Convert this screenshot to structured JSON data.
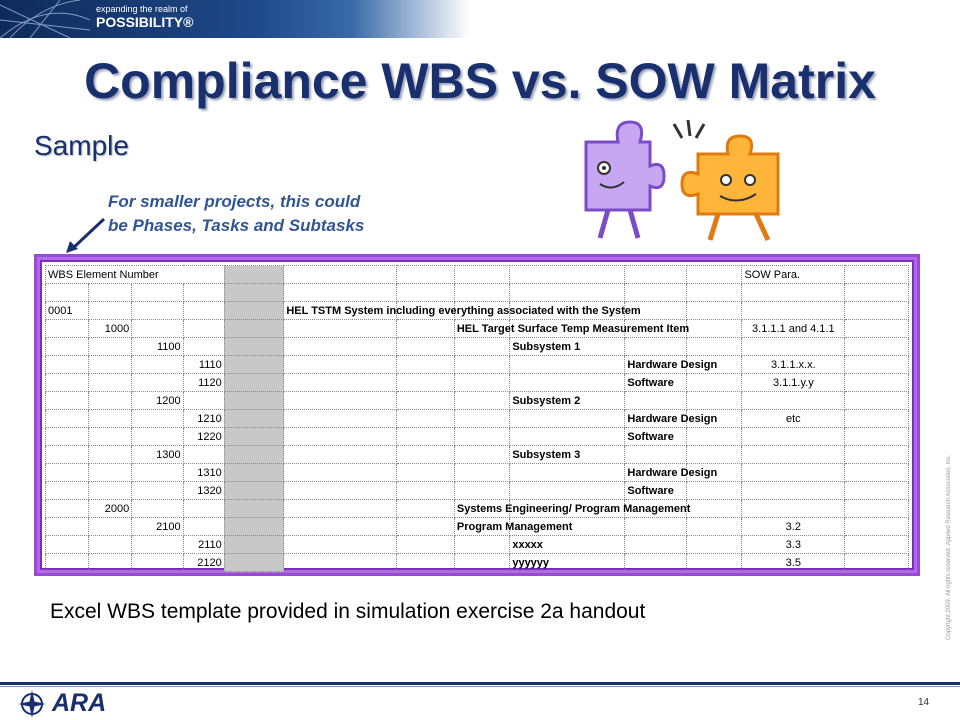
{
  "banner": {
    "tagline": "expanding the realm of",
    "brand": "POSSIBILITY®"
  },
  "title": "Compliance WBS vs. SOW Matrix",
  "subtitle": "Sample",
  "note": {
    "line1": "For smaller projects, this could",
    "line2": "be Phases, Tasks and Subtasks"
  },
  "sheet": {
    "header": {
      "wbs": "WBS Element Number",
      "sow": "SOW Para."
    },
    "rows": [
      {
        "l1": "0001",
        "l2": "",
        "l3": "",
        "l4": "",
        "desc1": "HEL TSTM System  including everything associated with the System",
        "desc2": "",
        "desc3": "",
        "desc4": "",
        "sow": ""
      },
      {
        "l1": "",
        "l2": "1000",
        "l3": "",
        "l4": "",
        "desc1": "",
        "desc2": "HEL Target Surface Temp Measurement Item",
        "desc3": "",
        "desc4": "",
        "sow": "3.1.1.1  and 4.1.1"
      },
      {
        "l1": "",
        "l2": "",
        "l3": "1100",
        "l4": "",
        "desc1": "",
        "desc2": "",
        "desc3": "Subsystem 1",
        "desc4": "",
        "sow": ""
      },
      {
        "l1": "",
        "l2": "",
        "l3": "",
        "l4": "1110",
        "desc1": "",
        "desc2": "",
        "desc3": "",
        "desc4": "Hardware Design",
        "sow": "3.1.1.x.x."
      },
      {
        "l1": "",
        "l2": "",
        "l3": "",
        "l4": "1120",
        "desc1": "",
        "desc2": "",
        "desc3": "",
        "desc4": "Software",
        "sow": "3.1.1.y.y"
      },
      {
        "l1": "",
        "l2": "",
        "l3": "1200",
        "l4": "",
        "desc1": "",
        "desc2": "",
        "desc3": "Subsystem 2",
        "desc4": "",
        "sow": ""
      },
      {
        "l1": "",
        "l2": "",
        "l3": "",
        "l4": "1210",
        "desc1": "",
        "desc2": "",
        "desc3": "",
        "desc4": "Hardware Design",
        "sow": "etc"
      },
      {
        "l1": "",
        "l2": "",
        "l3": "",
        "l4": "1220",
        "desc1": "",
        "desc2": "",
        "desc3": "",
        "desc4": "Software",
        "sow": ""
      },
      {
        "l1": "",
        "l2": "",
        "l3": "1300",
        "l4": "",
        "desc1": "",
        "desc2": "",
        "desc3": "Subsystem 3",
        "desc4": "",
        "sow": ""
      },
      {
        "l1": "",
        "l2": "",
        "l3": "",
        "l4": "1310",
        "desc1": "",
        "desc2": "",
        "desc3": "",
        "desc4": "Hardware Design",
        "sow": ""
      },
      {
        "l1": "",
        "l2": "",
        "l3": "",
        "l4": "1320",
        "desc1": "",
        "desc2": "",
        "desc3": "",
        "desc4": "Software",
        "sow": ""
      },
      {
        "l1": "",
        "l2": "2000",
        "l3": "",
        "l4": "",
        "desc1": "",
        "desc2": "Systems Engineering/ Program Management",
        "desc3": "",
        "desc4": "",
        "sow": ""
      },
      {
        "l1": "",
        "l2": "",
        "l3": "2100",
        "l4": "",
        "desc1": "",
        "desc2": "Program Management",
        "desc3": "",
        "desc4": "",
        "sow": "3.2"
      },
      {
        "l1": "",
        "l2": "",
        "l3": "",
        "l4": "2110",
        "desc1": "",
        "desc2": "",
        "desc3": "xxxxx",
        "desc4": "",
        "sow": "3.3"
      },
      {
        "l1": "",
        "l2": "",
        "l3": "",
        "l4": "2120",
        "desc1": "",
        "desc2": "",
        "desc3": "yyyyyy",
        "desc4": "",
        "sow": "3.5"
      }
    ]
  },
  "caption": "Excel WBS template provided in simulation exercise 2a handout",
  "copyright": "Copyright 2009. All rights reserved. Applied Research Associates, Inc.",
  "footer": {
    "logo": "ARA",
    "page": "14"
  },
  "colors": {
    "title": "#1a2f6e",
    "note": "#2f5596",
    "frame": "#9a4ad8"
  }
}
